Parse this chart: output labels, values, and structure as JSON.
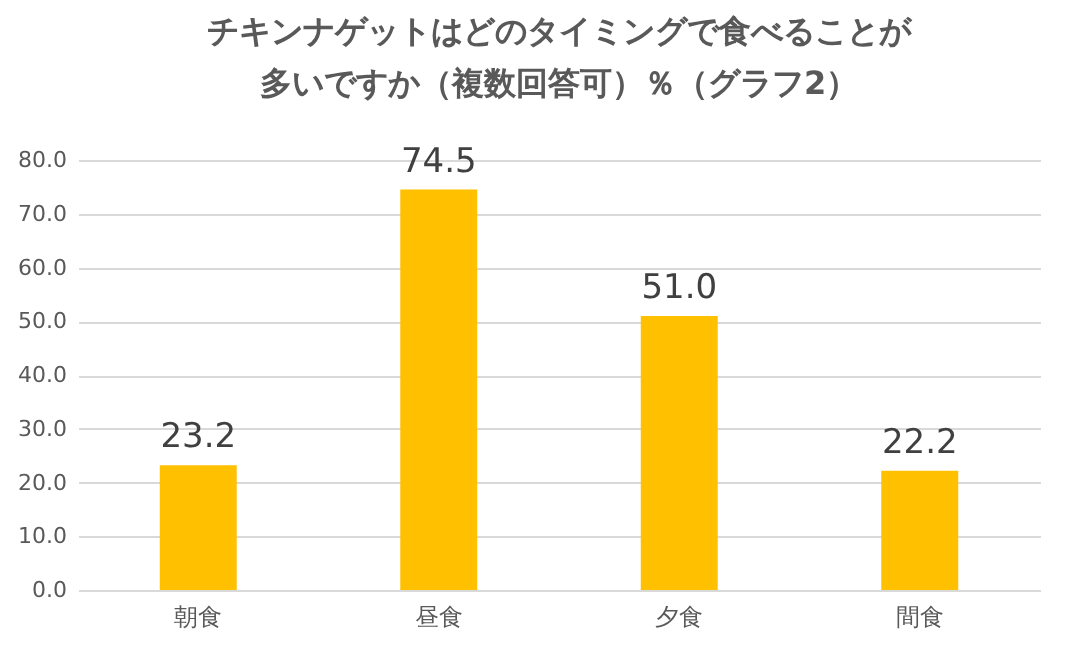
{
  "chart_data": {
    "type": "bar",
    "title": "チキンナゲットはどのタイミングで食べることが多いですか（複数回答可）％（グラフ2）",
    "categories": [
      "朝食",
      "昼食",
      "夕食",
      "間食"
    ],
    "values": [
      23.2,
      74.5,
      51.0,
      22.2
    ],
    "value_labels": [
      "23.2",
      "74.5",
      "51.0",
      "22.2"
    ],
    "color": "#ffc000",
    "ylim": [
      0,
      80
    ],
    "yticks": [
      {
        "value": 0,
        "label": "0.0"
      },
      {
        "value": 10,
        "label": "10.0"
      },
      {
        "value": 20,
        "label": "20.0"
      },
      {
        "value": 30,
        "label": "30.0"
      },
      {
        "value": 40,
        "label": "40.0"
      },
      {
        "value": 50,
        "label": "50.0"
      },
      {
        "value": 60,
        "label": "60.0"
      },
      {
        "value": 70,
        "label": "70.0"
      },
      {
        "value": 80,
        "label": "80.0"
      }
    ],
    "grid": "y"
  }
}
